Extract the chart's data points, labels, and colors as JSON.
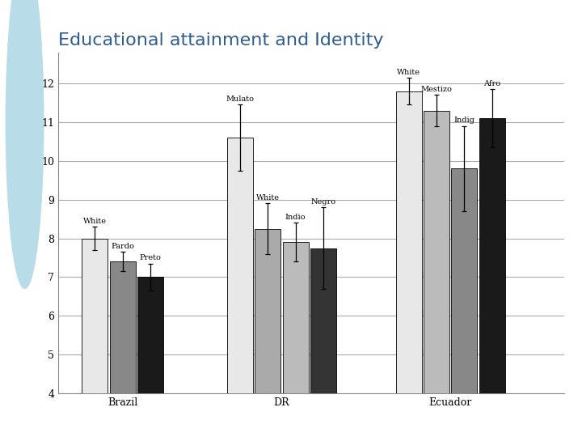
{
  "title": "Educational attainment and Identity",
  "title_color": "#2E5D8E",
  "title_fontsize": 16,
  "groups": [
    "Brazil",
    "DR",
    "Ecuador"
  ],
  "bars": {
    "Brazil": {
      "labels": [
        "White",
        "Pardo",
        "Preto"
      ],
      "values": [
        8.0,
        7.4,
        7.0
      ],
      "errors": [
        0.3,
        0.25,
        0.35
      ],
      "colors": [
        "#e8e8e8",
        "#888888",
        "#1a1a1a"
      ]
    },
    "DR": {
      "labels": [
        "Mulato",
        "White",
        "Indio",
        "Negro"
      ],
      "values": [
        10.6,
        8.25,
        7.9,
        7.75
      ],
      "errors": [
        0.85,
        0.65,
        0.5,
        1.05
      ],
      "colors": [
        "#e8e8e8",
        "#aaaaaa",
        "#bbbbbb",
        "#333333"
      ]
    },
    "Ecuador": {
      "labels": [
        "White",
        "Mestizo",
        "Indig",
        "Afro"
      ],
      "values": [
        11.8,
        11.3,
        9.8,
        11.1
      ],
      "errors": [
        0.35,
        0.4,
        1.1,
        0.75
      ],
      "colors": [
        "#e8e8e8",
        "#bbbbbb",
        "#888888",
        "#1a1a1a"
      ]
    }
  },
  "ylim": [
    4,
    12.8
  ],
  "yticks": [
    4,
    5,
    6,
    7,
    8,
    9,
    10,
    11,
    12
  ],
  "background_color": "#ffffff",
  "left_panel_color": "#b8dce8",
  "plot_bg": "#ffffff",
  "grid_color": "#aaaaaa",
  "group_centers": [
    1.6,
    4.8,
    8.2
  ],
  "bar_width": 0.52,
  "bar_gap": 0.04,
  "xlim": [
    0.3,
    10.5
  ],
  "label_fontsize": 7,
  "axis_fontsize": 9,
  "group_label_fontsize": 9
}
